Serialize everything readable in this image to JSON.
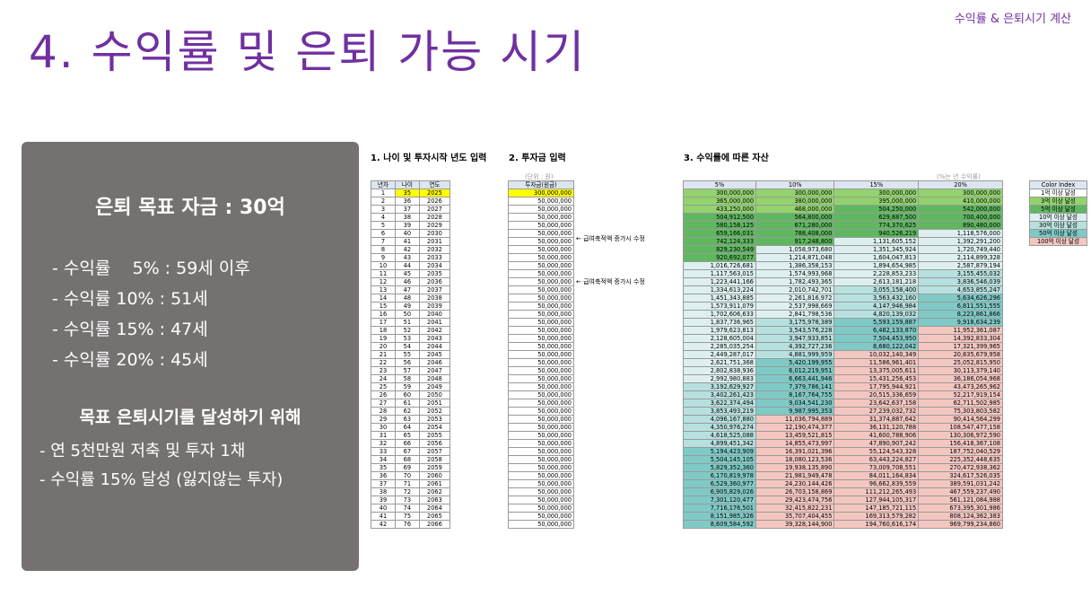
{
  "header": {
    "top_label": "수익률 & 은퇴시기 계산",
    "title": "4. 수익률 및 은퇴 가능 시기"
  },
  "panel": {
    "heading": "은퇴 목표 자금 : 30억",
    "rates": [
      "- 수익률    5% : 59세 이후",
      "- 수익률 10% : 51세",
      "- 수익률 15% : 47세",
      "- 수익률 20% : 45세"
    ],
    "sub_heading": "목표 은퇴시기를 달성하기 위해",
    "plan": [
      "- 연 5천만원 저축 및 투자 1채",
      "- 수익률 15% 달성 (잃지않는 투자)"
    ]
  },
  "sheet": {
    "section1_title": "1. 나이 및 투자시작 년도 입력",
    "section2_title": "2. 투자금 입력",
    "section3_title": "3. 수익률에 따른 자산",
    "unit_note": "(단위 : 원)",
    "rate_note": "(%는 년 수익률)",
    "age_headers": [
      "년차",
      "나이",
      "연도"
    ],
    "invest_header": "투자금(원금)",
    "wealth_headers": [
      "5%",
      "10%",
      "15%",
      "20%"
    ],
    "notes": [
      "← 급여축적액 증가시 수정",
      "← 급여축적액 증가시 수정"
    ],
    "color_index": {
      "header": "Color Index",
      "items": [
        {
          "label": "1억 이상 달성",
          "color": "#ffffff"
        },
        {
          "label": "3억 이상 달성",
          "color": "#92d36e"
        },
        {
          "label": "5억 이상 달성",
          "color": "#5fb760"
        },
        {
          "label": "10억 이상 달성",
          "color": "#ddf0ef"
        },
        {
          "label": "30억 이상 달성",
          "color": "#b7e1df"
        },
        {
          "label": "50억 이상 달성",
          "color": "#7fcac7"
        },
        {
          "label": "100억 이상 달성",
          "color": "#f4c6c0"
        }
      ]
    },
    "rows": [
      [
        "1",
        "35",
        "2025",
        "300,000,000",
        "300,000,000",
        "300,000,000",
        "300,000,000",
        "300,000,000"
      ],
      [
        "2",
        "36",
        "2026",
        "50,000,000",
        "365,000,000",
        "380,000,000",
        "395,000,000",
        "410,000,000"
      ],
      [
        "3",
        "37",
        "2027",
        "50,000,000",
        "433,250,000",
        "468,000,000",
        "504,250,000",
        "542,000,000"
      ],
      [
        "4",
        "38",
        "2028",
        "50,000,000",
        "504,912,500",
        "564,800,000",
        "629,887,500",
        "700,400,000"
      ],
      [
        "5",
        "39",
        "2029",
        "50,000,000",
        "580,158,125",
        "671,280,000",
        "774,370,625",
        "890,480,000"
      ],
      [
        "6",
        "40",
        "2030",
        "50,000,000",
        "659,166,031",
        "788,408,000",
        "940,526,219",
        "1,118,576,000"
      ],
      [
        "7",
        "41",
        "2031",
        "50,000,000",
        "742,124,333",
        "917,248,800",
        "1,131,605,152",
        "1,392,291,200"
      ],
      [
        "8",
        "42",
        "2032",
        "50,000,000",
        "829,230,549",
        "1,058,973,680",
        "1,351,345,924",
        "1,720,749,440"
      ],
      [
        "9",
        "43",
        "2033",
        "50,000,000",
        "920,692,077",
        "1,214,871,048",
        "1,604,047,813",
        "2,114,899,328"
      ],
      [
        "10",
        "44",
        "2034",
        "50,000,000",
        "1,016,726,681",
        "1,386,358,153",
        "1,894,654,985",
        "2,587,879,194"
      ],
      [
        "11",
        "45",
        "2035",
        "50,000,000",
        "1,117,563,015",
        "1,574,993,968",
        "2,228,853,233",
        "3,155,455,032"
      ],
      [
        "12",
        "46",
        "2036",
        "50,000,000",
        "1,223,441,166",
        "1,782,493,365",
        "2,613,181,218",
        "3,836,546,039"
      ],
      [
        "13",
        "47",
        "2037",
        "50,000,000",
        "1,334,613,224",
        "2,010,742,701",
        "3,055,158,400",
        "4,653,855,247"
      ],
      [
        "14",
        "48",
        "2038",
        "50,000,000",
        "1,451,343,885",
        "2,261,816,972",
        "3,563,432,160",
        "5,634,626,296"
      ],
      [
        "15",
        "49",
        "2039",
        "50,000,000",
        "1,573,911,079",
        "2,537,998,669",
        "4,147,946,984",
        "6,811,551,555"
      ],
      [
        "16",
        "50",
        "2040",
        "50,000,000",
        "1,702,606,633",
        "2,841,798,536",
        "4,820,139,032",
        "8,223,861,866"
      ],
      [
        "17",
        "51",
        "2041",
        "50,000,000",
        "1,837,736,965",
        "3,175,978,389",
        "5,593,159,887",
        "9,918,634,239"
      ],
      [
        "18",
        "52",
        "2042",
        "50,000,000",
        "1,979,623,813",
        "3,543,576,228",
        "6,482,133,870",
        "11,952,361,087"
      ],
      [
        "19",
        "53",
        "2043",
        "50,000,000",
        "2,128,605,004",
        "3,947,933,851",
        "7,504,453,950",
        "14,392,833,304"
      ],
      [
        "20",
        "54",
        "2044",
        "50,000,000",
        "2,285,035,254",
        "4,392,727,236",
        "8,680,122,042",
        "17,321,399,965"
      ],
      [
        "21",
        "55",
        "2045",
        "50,000,000",
        "2,449,287,017",
        "4,881,999,959",
        "10,032,140,349",
        "20,835,679,958"
      ],
      [
        "22",
        "56",
        "2046",
        "50,000,000",
        "2,621,751,368",
        "5,420,199,955",
        "11,586,961,401",
        "25,052,815,950"
      ],
      [
        "23",
        "57",
        "2047",
        "50,000,000",
        "2,802,838,936",
        "6,012,219,951",
        "13,375,005,611",
        "30,113,379,140"
      ],
      [
        "24",
        "58",
        "2048",
        "50,000,000",
        "2,992,980,883",
        "6,663,441,946",
        "15,431,256,453",
        "36,186,054,968"
      ],
      [
        "25",
        "59",
        "2049",
        "50,000,000",
        "3,192,629,927",
        "7,379,786,141",
        "17,795,944,921",
        "43,473,265,962"
      ],
      [
        "26",
        "60",
        "2050",
        "50,000,000",
        "3,402,261,423",
        "8,167,764,755",
        "20,515,336,659",
        "52,217,919,154"
      ],
      [
        "27",
        "61",
        "2051",
        "50,000,000",
        "3,622,374,494",
        "9,034,541,230",
        "23,642,637,158",
        "62,711,502,985"
      ],
      [
        "28",
        "62",
        "2052",
        "50,000,000",
        "3,853,493,219",
        "9,987,995,353",
        "27,239,032,732",
        "75,303,803,582"
      ],
      [
        "29",
        "63",
        "2053",
        "50,000,000",
        "4,096,167,880",
        "11,036,794,889",
        "31,374,887,642",
        "90,414,564,299"
      ],
      [
        "30",
        "64",
        "2054",
        "50,000,000",
        "4,350,976,274",
        "12,190,474,377",
        "36,131,120,788",
        "108,547,477,158"
      ],
      [
        "31",
        "65",
        "2055",
        "50,000,000",
        "4,618,525,088",
        "13,459,521,815",
        "41,600,788,906",
        "130,306,972,590"
      ],
      [
        "32",
        "66",
        "2056",
        "50,000,000",
        "4,899,451,342",
        "14,855,473,997",
        "47,890,907,242",
        "156,418,367,108"
      ],
      [
        "33",
        "67",
        "2057",
        "50,000,000",
        "5,194,423,909",
        "16,391,021,396",
        "55,124,543,328",
        "187,752,040,529"
      ],
      [
        "34",
        "68",
        "2058",
        "50,000,000",
        "5,504,145,105",
        "18,080,123,536",
        "63,443,224,827",
        "225,352,448,635"
      ],
      [
        "35",
        "69",
        "2059",
        "50,000,000",
        "5,829,352,360",
        "19,938,135,890",
        "73,009,708,551",
        "270,472,938,362"
      ],
      [
        "36",
        "70",
        "2060",
        "50,000,000",
        "6,170,819,978",
        "21,981,949,478",
        "84,011,164,834",
        "324,617,526,035"
      ],
      [
        "37",
        "71",
        "2061",
        "50,000,000",
        "6,529,360,977",
        "24,230,144,426",
        "96,662,839,559",
        "389,591,031,242"
      ],
      [
        "38",
        "72",
        "2062",
        "50,000,000",
        "6,905,829,026",
        "26,703,158,869",
        "111,212,265,493",
        "467,559,237,490"
      ],
      [
        "39",
        "73",
        "2063",
        "50,000,000",
        "7,301,120,477",
        "29,423,474,756",
        "127,944,105,317",
        "561,121,084,988"
      ],
      [
        "40",
        "74",
        "2064",
        "50,000,000",
        "7,716,176,501",
        "32,415,822,231",
        "147,185,721,115",
        "673,395,301,986"
      ],
      [
        "41",
        "75",
        "2065",
        "50,000,000",
        "8,151,985,326",
        "35,707,404,455",
        "169,313,579,282",
        "808,124,362,383"
      ],
      [
        "42",
        "76",
        "2066",
        "50,000,000",
        "8,609,584,592",
        "39,328,144,900",
        "194,760,616,174",
        "969,799,234,860"
      ]
    ]
  }
}
